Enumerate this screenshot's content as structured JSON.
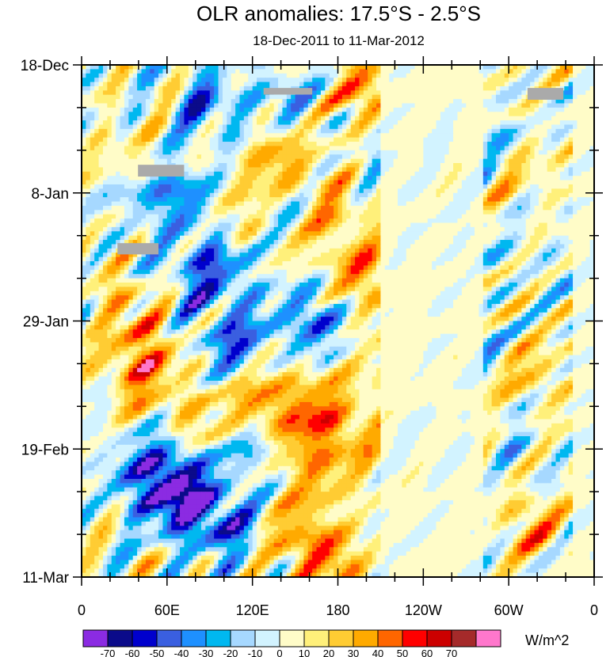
{
  "chart_data": {
    "type": "heatmap",
    "title": "OLR anomalies: 17.5°S - 2.5°S",
    "subtitle": "18-Dec-2011 to 11-Mar-2012",
    "xlabel": "",
    "ylabel": "",
    "x_ticks": [
      "0",
      "60E",
      "120E",
      "180",
      "120W",
      "60W",
      "0"
    ],
    "x_range_deg_east": [
      0,
      360
    ],
    "y_ticks": [
      "18-Dec",
      "8-Jan",
      "29-Jan",
      "19-Feb",
      "11-Mar"
    ],
    "y_range": [
      "18-Dec-2011",
      "11-Mar-2012"
    ],
    "colorbar": {
      "unit": "W/m^2",
      "levels": [
        "-70",
        "-60",
        "-50",
        "-40",
        "-30",
        "-20",
        "-10",
        "0",
        "10",
        "20",
        "30",
        "40",
        "50",
        "60",
        "70"
      ],
      "colors": [
        "#8b2be2",
        "#0b0b8a",
        "#0000cd",
        "#3a5fe0",
        "#1e90ff",
        "#00b8f0",
        "#a6d8ff",
        "#d2f3ff",
        "#fffcc8",
        "#fff07a",
        "#ffcc33",
        "#ffaa00",
        "#ff6600",
        "#ff0000",
        "#cc0000",
        "#a52a2a",
        "#ff77cc"
      ]
    },
    "missing_data_color": "#aaaaaa"
  }
}
